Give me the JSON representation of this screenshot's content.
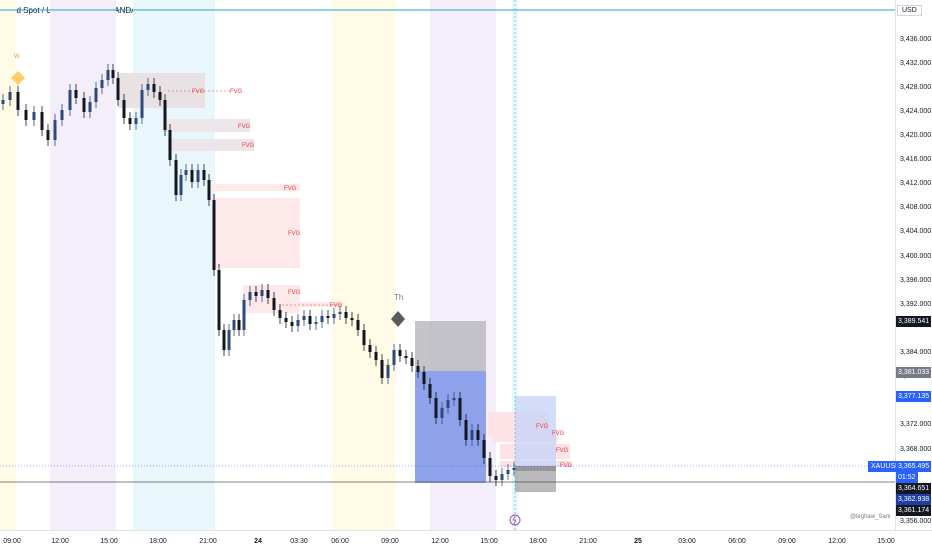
{
  "header": {
    "title": "Gold Spot / U.S. Dollar · 15 · OANDA"
  },
  "axis": {
    "currency": "USD",
    "price_ticks": [
      "3,436.000",
      "3,432.000",
      "3,428.000",
      "3,424.000",
      "3,420.000",
      "3,416.000",
      "3,412.000",
      "3,408.000",
      "3,404.000",
      "3,400.000",
      "3,396.000",
      "3,392.000",
      "3,384.000",
      "3,380.000",
      "3,372.000",
      "3,368.000",
      "3,356.000"
    ],
    "time_ticks": [
      "09:00",
      "12:00",
      "15:00",
      "18:00",
      "21:00",
      "24",
      "03:30",
      "06:00",
      "09:00",
      "12:00",
      "15:00",
      "18:00",
      "21:00",
      "25",
      "03:00",
      "06:00",
      "09:00",
      "12:00",
      "15:00"
    ],
    "bold_ticks": [
      "24",
      "25"
    ]
  },
  "price_tags": {
    "tag1": "3,389.541",
    "tag2": "3,381.033",
    "tag3": "3,377.135",
    "symbol": "XAUUSD",
    "last_price": "3,365.495",
    "countdown": "01:52",
    "tag5": "3,364.651",
    "tag6": "3,362.938",
    "tag7": "3,361.174"
  },
  "chart_labels": {
    "fvg": "FVG",
    "session_w": "W",
    "session_th": "Th"
  },
  "watermark": "@leghaw_Sani",
  "colors": {
    "up": "#2e4a7d",
    "down": "#131722",
    "fvg_text": "#f23645",
    "accent": "#2962ff",
    "cyan_line": "#22aacc"
  }
}
